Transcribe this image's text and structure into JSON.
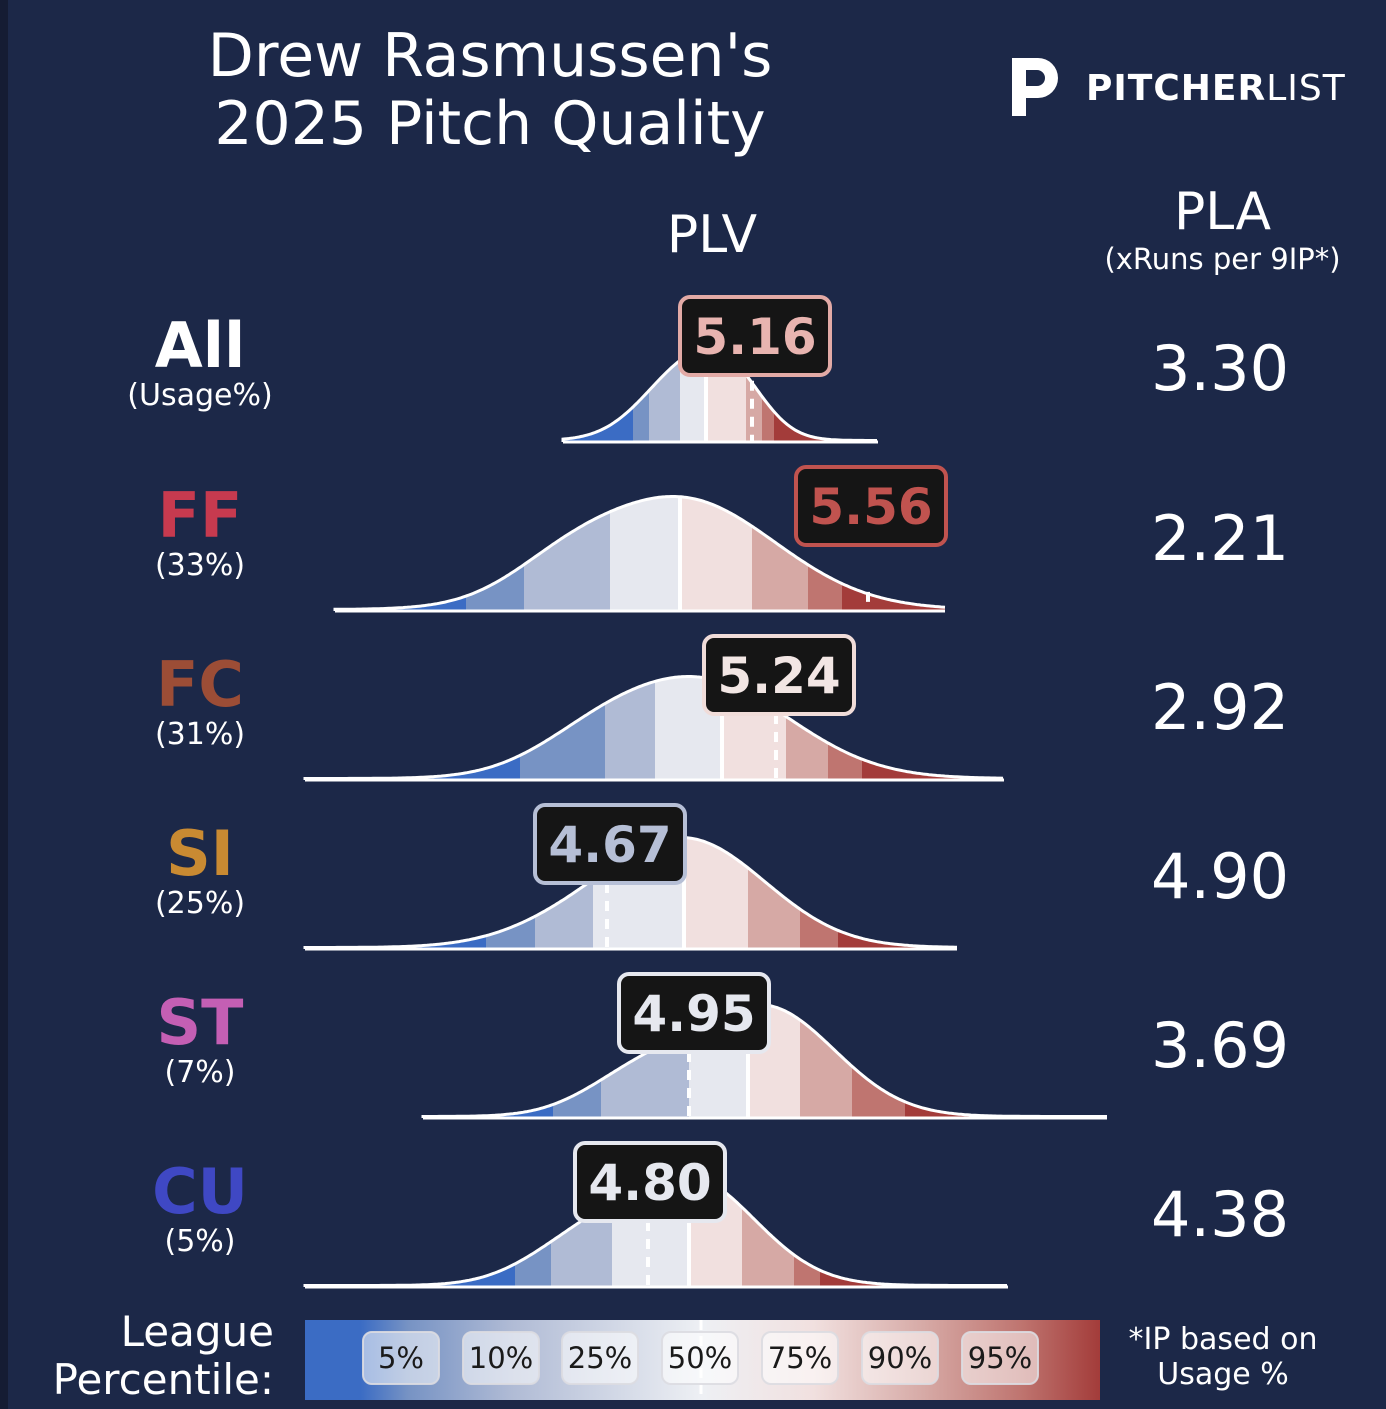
{
  "header": {
    "title_line1": "Drew Rasmussen's",
    "title_line2": "2025 Pitch Quality",
    "logo_bold": "PITCHER",
    "logo_light": "LIST",
    "plv_label": "PLV",
    "pla_label": "PLA",
    "pla_sub": "(xRuns per 9IP*)"
  },
  "colors": {
    "background": "#1c2848",
    "band_colors": [
      "#3b6cc4",
      "#7793c4",
      "#b0bbd5",
      "#e6e8ef",
      "#f1e0df",
      "#d6a9a5",
      "#bf7570",
      "#a33c3a"
    ],
    "FF": "#c73a4f",
    "FC": "#9c4d36",
    "SI": "#c98a32",
    "ST": "#c45fb4",
    "CU": "#3f48c4",
    "All": "#ffffff"
  },
  "chart_data": {
    "type": "density",
    "metric": "PLV",
    "percentile_bands": [
      "5%",
      "10%",
      "25%",
      "50%",
      "75%",
      "90%",
      "95%"
    ],
    "rows": [
      {
        "pitch": "All",
        "usage": "(Usage%)",
        "plv": "5.16",
        "pla": "3.30",
        "plv_value": 5.16
      },
      {
        "pitch": "FF",
        "usage": "(33%)",
        "plv": "5.56",
        "pla": "2.21",
        "plv_value": 5.56
      },
      {
        "pitch": "FC",
        "usage": "(31%)",
        "plv": "5.24",
        "pla": "2.92",
        "plv_value": 5.24
      },
      {
        "pitch": "SI",
        "usage": "(25%)",
        "plv": "4.67",
        "pla": "4.90",
        "plv_value": 4.67
      },
      {
        "pitch": "ST",
        "usage": "(7%)",
        "plv": "4.95",
        "pla": "3.69",
        "plv_value": 4.95
      },
      {
        "pitch": "CU",
        "usage": "(5%)",
        "plv": "4.80",
        "pla": "4.38",
        "plv_value": 4.8
      }
    ]
  },
  "legend": {
    "title_line1": "League",
    "title_line2": "Percentile:",
    "labels": [
      "5%",
      "10%",
      "25%",
      "50%",
      "75%",
      "90%",
      "95%"
    ]
  },
  "footnote": {
    "line1": "*IP based on",
    "line2": "Usage %"
  }
}
